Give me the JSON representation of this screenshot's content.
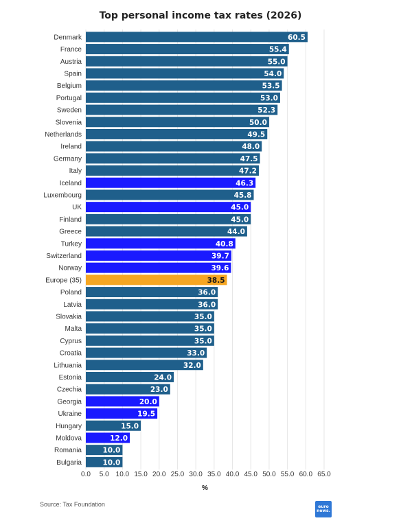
{
  "chart_data": {
    "type": "bar",
    "orientation": "horizontal",
    "title": "Top personal income tax rates (2026)",
    "xlabel": "%",
    "ylabel": "",
    "xlim": [
      0,
      65
    ],
    "x_ticks": [
      "0.0",
      "5.0",
      "10.0",
      "15.0",
      "20.0",
      "25.0",
      "30.0",
      "35.0",
      "40.0",
      "45.0",
      "50.0",
      "55.0",
      "60.0",
      "65.0"
    ],
    "grid": true,
    "categories": [
      "Denmark",
      "France",
      "Austria",
      "Spain",
      "Belgium",
      "Portugal",
      "Sweden",
      "Slovenia",
      "Netherlands",
      "Ireland",
      "Germany",
      "Italy",
      "Iceland",
      "Luxembourg",
      "UK",
      "Finland",
      "Greece",
      "Turkey",
      "Switzerland",
      "Norway",
      "Europe (35)",
      "Poland",
      "Latvia",
      "Slovakia",
      "Malta",
      "Cyprus",
      "Croatia",
      "Lithuania",
      "Estonia",
      "Czechia",
      "Georgia",
      "Ukraine",
      "Hungary",
      "Moldova",
      "Romania",
      "Bulgaria"
    ],
    "values": [
      60.5,
      55.4,
      55.0,
      54.0,
      53.5,
      53.0,
      52.3,
      50.0,
      49.5,
      48.0,
      47.5,
      47.2,
      46.3,
      45.8,
      45.0,
      45.0,
      44.0,
      40.8,
      39.7,
      39.6,
      38.5,
      36.0,
      36.0,
      35.0,
      35.0,
      35.0,
      33.0,
      32.0,
      24.0,
      23.0,
      20.0,
      19.5,
      15.0,
      12.0,
      10.0,
      10.0
    ],
    "value_labels": [
      "60.5",
      "55.4",
      "55.0",
      "54.0",
      "53.5",
      "53.0",
      "52.3",
      "50.0",
      "49.5",
      "48.0",
      "47.5",
      "47.2",
      "46.3",
      "45.8",
      "45.0",
      "45.0",
      "44.0",
      "40.8",
      "39.7",
      "39.6",
      "38.5",
      "36.0",
      "36.0",
      "35.0",
      "35.0",
      "35.0",
      "33.0",
      "32.0",
      "24.0",
      "23.0",
      "20.0",
      "19.5",
      "15.0",
      "12.0",
      "10.0",
      "10.0"
    ],
    "bar_groups": [
      "eu",
      "eu",
      "eu",
      "eu",
      "eu",
      "eu",
      "eu",
      "eu",
      "eu",
      "eu",
      "eu",
      "eu",
      "non_eu",
      "eu",
      "non_eu",
      "eu",
      "eu",
      "non_eu",
      "non_eu",
      "non_eu",
      "average",
      "eu",
      "eu",
      "eu",
      "eu",
      "eu",
      "eu",
      "eu",
      "eu",
      "eu",
      "non_eu",
      "non_eu",
      "eu",
      "non_eu",
      "eu",
      "eu"
    ],
    "colors": {
      "eu": "#1f5f8b",
      "non_eu": "#1a1aff",
      "average": "#f5a623",
      "grid": "#e6e6e6",
      "value_label_default": "#ffffff",
      "value_label_average": "#1a1a1a"
    }
  },
  "footer": {
    "source": "Source: Tax Foundation",
    "logo_line1": "euro",
    "logo_line2": "news."
  }
}
